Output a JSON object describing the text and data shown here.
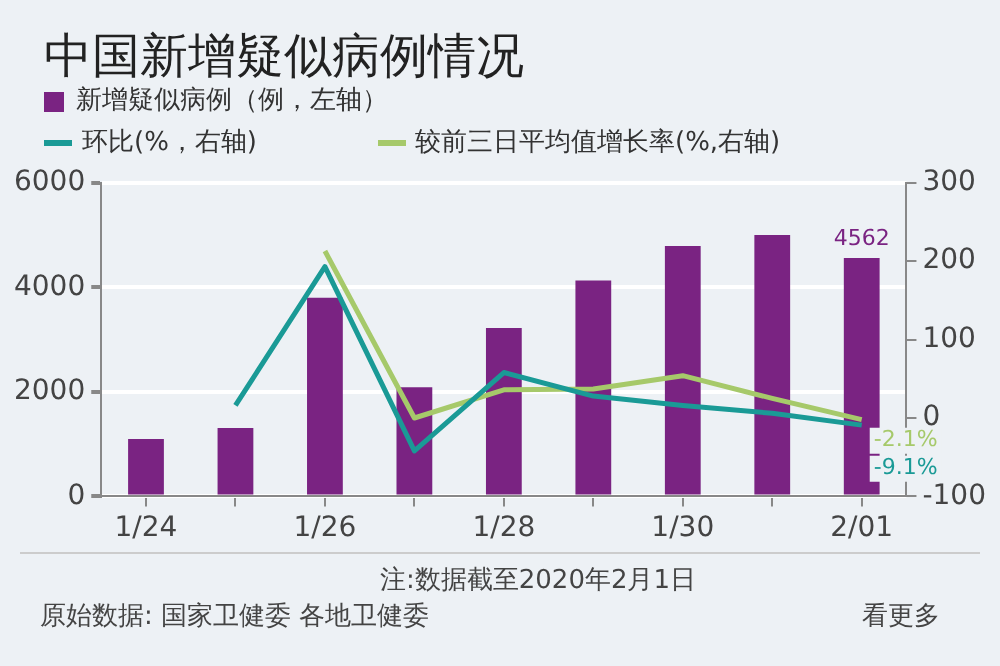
{
  "chart_data": {
    "type": "bar",
    "title": "中国新增疑似病例情况",
    "categories": [
      "1/24",
      null,
      "1/26",
      null,
      "1/28",
      null,
      "1/30",
      null,
      "2/01"
    ],
    "series": [
      {
        "name": "新增疑似病例（例，左轴）",
        "color": "#7a2382",
        "values": [
          1100,
          1310,
          3800,
          2090,
          3220,
          4130,
          4790,
          5000,
          4562
        ],
        "value_labels": [
          null,
          null,
          null,
          null,
          null,
          null,
          null,
          null,
          "4562"
        ]
      },
      {
        "name": "环比(%，右轴)",
        "type": "line",
        "axis": "y2",
        "color": "#1a9a96",
        "values": [
          null,
          16,
          193,
          -42,
          58,
          28,
          16,
          6,
          -9.1
        ],
        "value_labels": [
          null,
          null,
          null,
          null,
          null,
          null,
          null,
          null,
          "-9.1%"
        ]
      },
      {
        "name": "较前三日平均值增长率(%,右轴)",
        "type": "line",
        "axis": "y2",
        "color": "#a6c96a",
        "values": [
          null,
          null,
          213,
          0,
          36,
          37,
          54,
          25,
          -2.1
        ],
        "value_labels": [
          null,
          null,
          null,
          null,
          null,
          null,
          null,
          null,
          "-2.1%"
        ]
      }
    ],
    "ylim": [
      0,
      6000
    ],
    "yticks": [
      0,
      2000,
      4000,
      6000
    ],
    "y2lim": [
      -100,
      300
    ],
    "y2ticks": [
      -100,
      0,
      100,
      200,
      300
    ],
    "grid": "y",
    "legend": "top left",
    "marker": "none",
    "line_style": "solid",
    "annotations": [
      "注:数据截至2020年2月1日",
      "原始数据: 国家卫健委 各地卫健委",
      "看更多"
    ]
  }
}
